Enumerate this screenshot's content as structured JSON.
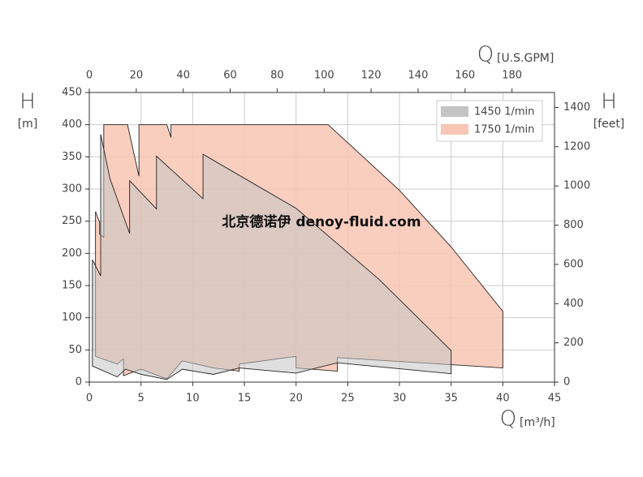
{
  "chart_data": {
    "type": "area-polygon",
    "xlabel": "Q",
    "xunit": "[m³/h]",
    "x2label": "Q",
    "x2unit": "[U.S.GPM]",
    "ylabel": "H",
    "yunit": "[m]",
    "y2label": "H",
    "y2unit": "[feet]",
    "annotation": "北京德诺伊 denoy-fluid.com",
    "xlim": [
      0,
      45
    ],
    "xticks": [
      0,
      5,
      10,
      15,
      20,
      25,
      30,
      35,
      40,
      45
    ],
    "ylim": [
      0,
      450
    ],
    "yticks": [
      0,
      50,
      100,
      150,
      200,
      250,
      300,
      350,
      400,
      450
    ],
    "x2lim": [
      0,
      198.1
    ],
    "x2ticks": [
      0,
      20,
      40,
      60,
      80,
      100,
      120,
      140,
      160,
      180
    ],
    "y2lim": [
      0,
      1476.4
    ],
    "y2ticks": [
      0,
      200,
      400,
      600,
      800,
      1000,
      1200,
      1400
    ],
    "grid": true,
    "legend": "upper right",
    "series": [
      {
        "name": "1750 1/min",
        "color": "#f8c6b3",
        "x": [
          0.6,
          1.0,
          1.0,
          1.4,
          1.4,
          3.7,
          4.8,
          4.8,
          7.5,
          7.9,
          7.9,
          23.1,
          30,
          35,
          40,
          40,
          24,
          24,
          20,
          20,
          14.5,
          14.5,
          12,
          9,
          7.5,
          5,
          3.3,
          3.3,
          2.7,
          0.6
        ],
        "values": [
          265,
          248,
          230,
          225,
          400,
          400,
          320,
          400,
          400,
          380,
          400,
          400,
          298,
          210,
          110,
          22,
          38,
          17,
          22,
          40,
          28,
          17,
          22,
          33,
          5,
          20,
          10,
          36,
          28,
          40
        ]
      },
      {
        "name": "1450 1/min",
        "color": "#c4c4c4",
        "x": [
          0.3,
          1.1,
          1.1,
          2.0,
          3.9,
          3.9,
          6.5,
          6.5,
          11,
          11,
          20,
          28,
          35,
          35,
          24,
          20,
          14.5,
          12,
          9,
          7.5,
          5,
          3.5,
          2.7,
          0.3
        ],
        "values": [
          190,
          165,
          385,
          316,
          231,
          313,
          269,
          351,
          285,
          354,
          270,
          160,
          49,
          13,
          30,
          14,
          22,
          12,
          20,
          4,
          12,
          20,
          8,
          25
        ]
      }
    ]
  }
}
